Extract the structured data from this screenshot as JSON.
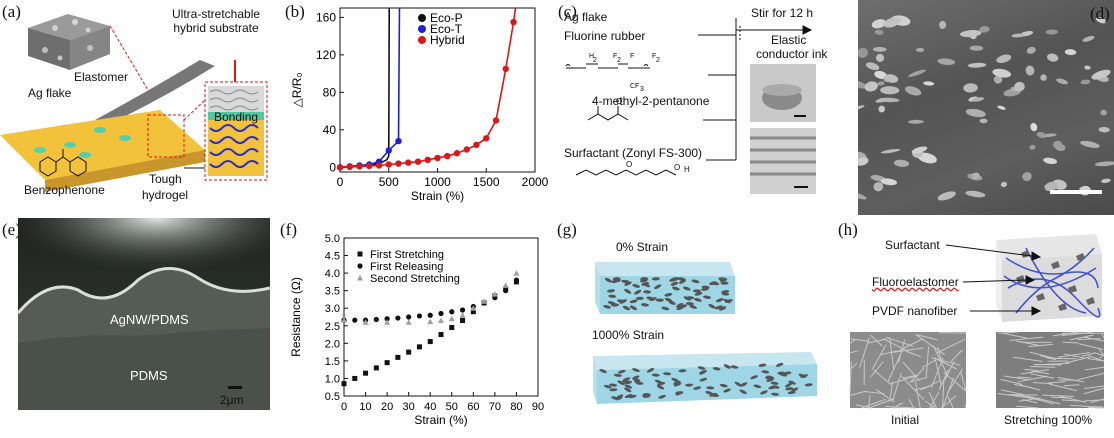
{
  "panels": {
    "a": {
      "label": "(a)",
      "substrate": "Ultra-stretchable\nhybrid substrate",
      "elastomer": "Elastomer",
      "ag_flake": "Ag flake",
      "bonding": "Bonding",
      "benzophenone": "Benzophenone",
      "tough": "Tough",
      "hydrogel": "hydrogel"
    },
    "b": {
      "label": "(b)"
    },
    "c": {
      "label": "(c)",
      "ag_flake": "Ag flake",
      "fluorine_rubber": "Fluorine rubber",
      "stir": "Stir for 12 h",
      "elastic": "Elastic",
      "conductor_ink": "conductor ink",
      "solvent": "4-methyl-2-pentanone",
      "surfactant": "Surfactant (Zonyl FS-300)"
    },
    "d": {
      "label": "(d)"
    },
    "e": {
      "label": "(e)",
      "top_layer": "AgNW/PDMS",
      "bottom_layer": "PDMS",
      "scale": "2μm"
    },
    "f": {
      "label": "(f)"
    },
    "g": {
      "label": "(g)",
      "strain0": "0% Strain",
      "strain1000": "1000% Strain"
    },
    "h": {
      "label": "(h)",
      "surfactant": "Surfactant",
      "fluoroelastomer": "Fluoroelastomer",
      "pvdf": "PVDF nanofiber",
      "initial": "Initial",
      "stretching": "Stretching 100%"
    }
  },
  "colors": {
    "eco_p": "#111111",
    "eco_t": "#1f1fe0",
    "hybrid": "#e01515",
    "hydrogel": "#f2c33a",
    "gel_mesh": "#2b2bd0",
    "water": "#9fd6e6"
  },
  "chart_data": [
    {
      "type": "line",
      "panel": "b",
      "xlabel": "Strain (%)",
      "ylabel": "△R/R₀",
      "xlim": [
        0,
        2000
      ],
      "ylim": [
        -5,
        170
      ],
      "xticks": [
        0,
        500,
        1000,
        1500,
        2000
      ],
      "yticks": [
        0,
        40,
        80,
        120,
        160
      ],
      "legend_position": "top-right",
      "series": [
        {
          "name": "Eco-P",
          "color": "#111111",
          "marker": "none",
          "x": [
            0,
            100,
            200,
            300,
            400,
            480,
            500,
            505
          ],
          "y": [
            0,
            0.5,
            1,
            2,
            4,
            8,
            12,
            170
          ]
        },
        {
          "name": "Eco-T",
          "color": "#1f1fe0",
          "marker": "circle",
          "x": [
            0,
            100,
            200,
            300,
            400,
            500,
            600,
            610
          ],
          "y": [
            0,
            1,
            2,
            3,
            6,
            18,
            28,
            170
          ]
        },
        {
          "name": "Hybrid",
          "color": "#e01515",
          "marker": "circle",
          "x": [
            0,
            100,
            200,
            300,
            400,
            500,
            600,
            700,
            800,
            900,
            1000,
            1100,
            1200,
            1300,
            1400,
            1500,
            1600,
            1700,
            1780,
            1800
          ],
          "y": [
            0,
            0.5,
            1,
            1.5,
            2,
            3,
            4,
            5,
            6,
            8,
            10,
            12,
            15,
            19,
            24,
            31,
            50,
            105,
            155,
            170
          ]
        }
      ]
    },
    {
      "type": "scatter",
      "panel": "f",
      "xlabel": "Strain (%)",
      "ylabel": "Resistance (Ω)",
      "xlim": [
        0,
        90
      ],
      "ylim": [
        0.5,
        5.0
      ],
      "xticks": [
        0,
        10,
        20,
        30,
        40,
        50,
        60,
        70,
        80,
        90
      ],
      "yticks": [
        0.5,
        1.0,
        1.5,
        2.0,
        2.5,
        3.0,
        3.5,
        4.0,
        4.5,
        5.0
      ],
      "legend_position": "top-left",
      "series": [
        {
          "name": "First Stretching",
          "marker": "square",
          "x": [
            0,
            5,
            10,
            15,
            20,
            25,
            30,
            35,
            40,
            45,
            50,
            55,
            60,
            65,
            70,
            75,
            80
          ],
          "y": [
            0.85,
            1.0,
            1.15,
            1.3,
            1.45,
            1.6,
            1.75,
            1.9,
            2.05,
            2.25,
            2.45,
            2.65,
            2.9,
            3.15,
            3.35,
            3.55,
            3.75
          ]
        },
        {
          "name": "First Releasing",
          "marker": "circle",
          "x": [
            80,
            75,
            70,
            65,
            60,
            55,
            50,
            45,
            40,
            35,
            30,
            25,
            20,
            15,
            10,
            5,
            0
          ],
          "y": [
            3.8,
            3.5,
            3.3,
            3.15,
            3.05,
            2.95,
            2.9,
            2.85,
            2.8,
            2.78,
            2.75,
            2.72,
            2.7,
            2.68,
            2.66,
            2.66,
            2.66
          ]
        },
        {
          "name": "Second Stretching",
          "marker": "triangle",
          "x": [
            0,
            10,
            20,
            30,
            40,
            45,
            50,
            55,
            60,
            65,
            70,
            75,
            80
          ],
          "y": [
            2.66,
            2.6,
            2.6,
            2.6,
            2.62,
            2.65,
            2.7,
            2.8,
            3.0,
            3.2,
            3.4,
            3.65,
            4.0
          ]
        }
      ]
    }
  ]
}
